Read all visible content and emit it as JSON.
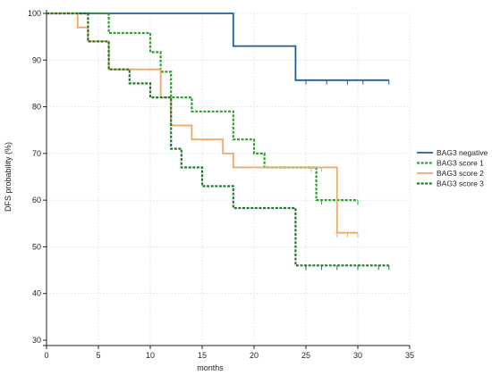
{
  "chart_data": {
    "type": "line",
    "title": "",
    "xlabel": "months",
    "ylabel": "DFS probability (%)",
    "xlim": [
      0,
      35
    ],
    "ylim": [
      30,
      100
    ],
    "x_ticks": [
      0,
      5,
      10,
      15,
      20,
      25,
      30,
      35
    ],
    "y_ticks": [
      30,
      40,
      50,
      60,
      70,
      80,
      90,
      100
    ],
    "grid": true,
    "legend_position": "right",
    "step": true,
    "series": [
      {
        "name": "BAG3 negative",
        "color": "#1f5f9e",
        "style": "solid",
        "x": [
          0,
          18,
          18,
          24,
          24,
          33
        ],
        "y": [
          100,
          100,
          93,
          93,
          85.7,
          85.7
        ],
        "censored_x": [
          25,
          27,
          29,
          30.5,
          33
        ]
      },
      {
        "name": "BAG3 score 1",
        "color": "#2aa32a",
        "style": "dashed",
        "x": [
          0,
          5,
          5,
          6,
          6,
          10,
          10,
          11,
          11,
          12,
          12,
          14,
          14,
          18,
          18,
          20,
          20,
          21,
          21,
          26,
          26,
          30
        ],
        "y": [
          100,
          100,
          100,
          100,
          95.8,
          95.8,
          91.7,
          91.7,
          87.5,
          87.5,
          82,
          82,
          79,
          79,
          73,
          73,
          70,
          70,
          67,
          67,
          60,
          60
        ],
        "censored_x": [
          26.5,
          28,
          30
        ]
      },
      {
        "name": "BAG3 score 2",
        "color": "#f0a868",
        "style": "solid",
        "x": [
          0,
          3,
          3,
          4,
          4,
          6,
          6,
          11,
          11,
          12,
          12,
          14,
          14,
          17,
          17,
          18,
          18,
          28,
          28,
          30
        ],
        "y": [
          100,
          100,
          97,
          97,
          94,
          94,
          88,
          88,
          82,
          82,
          76,
          76,
          73,
          73,
          70,
          70,
          67,
          67,
          53,
          53
        ],
        "censored_x": [
          25.5,
          26.5,
          28,
          29,
          30
        ]
      },
      {
        "name": "BAG3 score 3",
        "color": "#1e7a2a",
        "style": "dashed",
        "x": [
          0,
          4,
          4,
          6,
          6,
          8,
          8,
          10,
          10,
          12,
          12,
          13,
          13,
          15,
          15,
          18,
          18,
          24,
          24,
          33
        ],
        "y": [
          100,
          100,
          94,
          94,
          88,
          88,
          85,
          85,
          82,
          82,
          71,
          71,
          67,
          67,
          63,
          63,
          58.3,
          58.3,
          46,
          46
        ],
        "censored_x": [
          25,
          26.5,
          28,
          30,
          32,
          33
        ]
      }
    ]
  }
}
